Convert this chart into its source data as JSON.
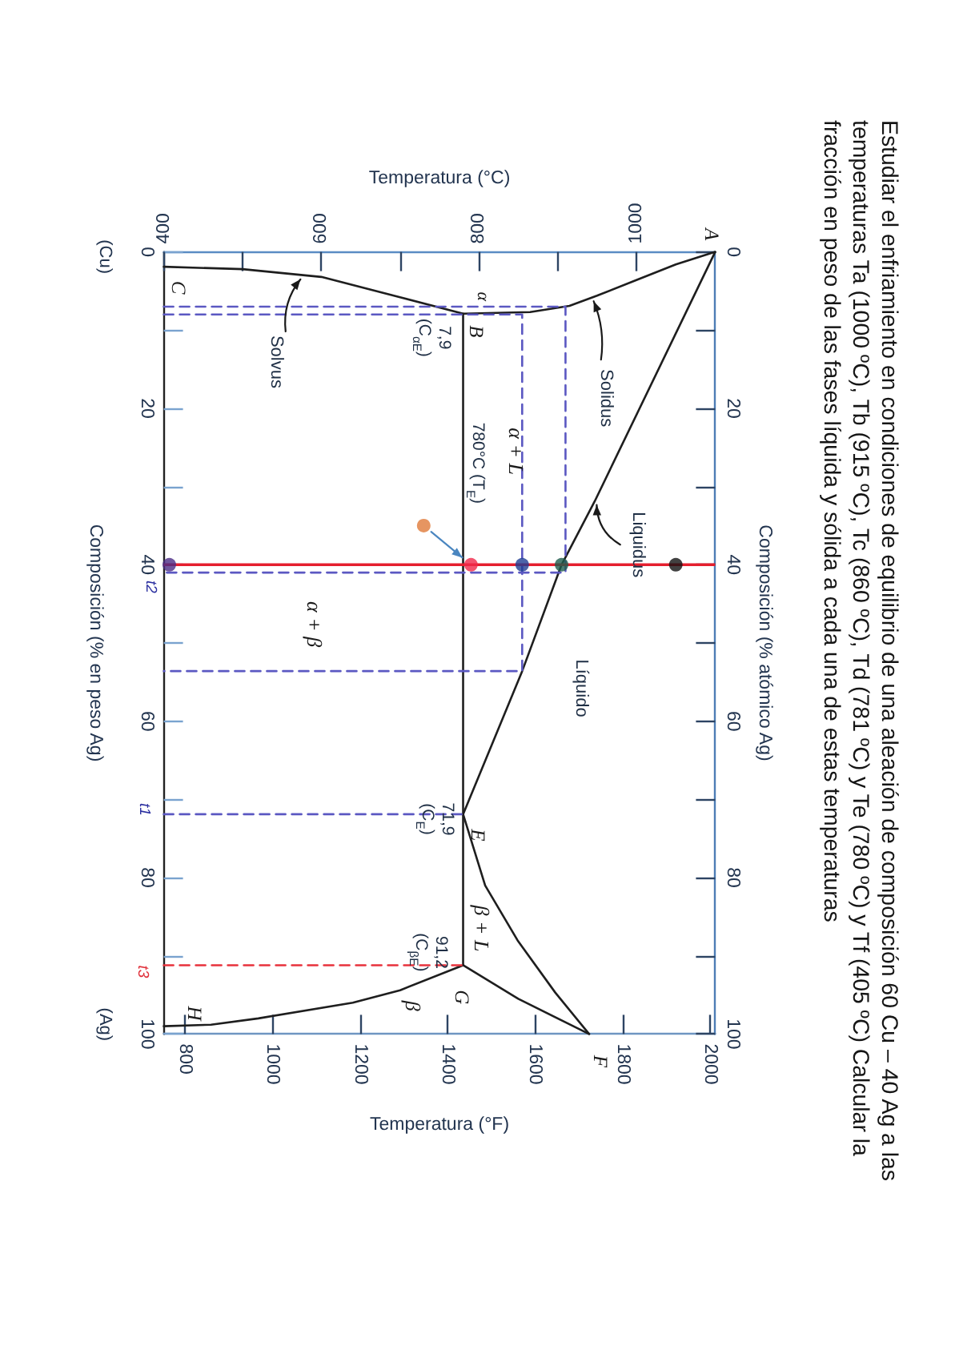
{
  "chart_data": {
    "type": "line",
    "title": "Estudiar el enfriamiento en condiciones de equilibrio de una aleación de composición 60 Cu – 40 Ag a las temperaturas Ta (1000 ºC), Tb (915 ºC), Tc (860 ºC), Td (781 ºC) y Te (780 ºC) y Tf (405 ºC) Calcular la fracción en peso de las fases líquida y sólida a cada una de estas temperaturas",
    "xlabel": "Temperatura (°C)",
    "x2label": "Temperatura (°F)",
    "ylabel": "Composición (% en peso Ag)",
    "y2label": "Composición (% atómico Ag)",
    "xlim": [
      400,
      1100
    ],
    "xticks": [
      400,
      {
        "value": 500,
        "label": null
      },
      600,
      {
        "value": 700,
        "label": null
      },
      800,
      {
        "value": 900,
        "label": null
      },
      1000
    ],
    "x2lim": [
      752,
      2012
    ],
    "x2ticks": [
      800,
      1000,
      1200,
      1400,
      1600,
      1800,
      2000
    ],
    "ylim": [
      100,
      0
    ],
    "yticks": [
      0,
      {
        "value": 10,
        "label": null
      },
      20,
      {
        "value": 30,
        "label": null
      },
      40,
      {
        "value": 50,
        "label": null
      },
      60,
      {
        "value": 70,
        "label": null
      },
      80,
      {
        "value": 90,
        "label": null
      },
      100
    ],
    "y2lim": [
      100,
      0
    ],
    "y2ticks": [
      0,
      {
        "value": 10,
        "label": null
      },
      20,
      {
        "value": 30,
        "label": null
      },
      40,
      {
        "value": 50,
        "label": null
      },
      60,
      {
        "value": 70,
        "label": null
      },
      80,
      {
        "value": 90,
        "label": null
      },
      100
    ],
    "grid": false,
    "marker": "none",
    "series": [
      {
        "color": "#1e1e1e",
        "x": [
          1100,
          947,
          905,
          855,
          780
        ],
        "values": [
          0,
          31.9,
          40,
          53.6,
          71.9
        ]
      },
      {
        "color": "#1e1e1e",
        "x": [
          1100,
          1050,
          1000,
          950,
          915,
          865,
          780,
          700,
          600,
          500,
          400
        ],
        "values": [
          0,
          1.6,
          3.6,
          5.6,
          6.9,
          7.7,
          7.9,
          5.8,
          3.2,
          2.2,
          1.9
        ]
      },
      {
        "color": "#1e1e1e",
        "x": [
          780,
          780
        ],
        "values": [
          7.9,
          91.2
        ]
      },
      {
        "color": "#1e1e1e",
        "x": [
          780,
          808,
          849,
          897,
          940
        ],
        "values": [
          71.9,
          81,
          88,
          94.7,
          100
        ]
      },
      {
        "color": "#1e1e1e",
        "x": [
          780,
          850,
          940
        ],
        "values": [
          91.2,
          95.5,
          100
        ]
      },
      {
        "color": "#1e1e1e",
        "x": [
          780,
          700,
          640,
          520,
          460,
          400
        ],
        "values": [
          91.2,
          94.4,
          96,
          98,
          98.8,
          99
        ]
      },
      {
        "color": "#5b58c2",
        "line_style": "dashed",
        "x": [
          400,
          910,
          910,
          400,
          null,
          400,
          855,
          855,
          400
        ],
        "values": [
          7,
          7,
          41,
          41,
          null,
          8,
          8,
          53.6,
          53.6
        ]
      },
      {
        "color": "#5b58c2",
        "line_style": "dashed",
        "x": [
          400,
          780
        ],
        "values": [
          71.9,
          71.9
        ]
      },
      {
        "color": "#e8323c",
        "line_style": "dashed",
        "x": [
          400,
          780
        ],
        "values": [
          91.2,
          91.2
        ]
      },
      {
        "type": "scatter",
        "marker": "circle",
        "x": [
          1050,
          905,
          855,
          790,
          730,
          407
        ],
        "values": [
          40,
          40,
          40,
          40,
          35,
          40
        ],
        "colors": [
          "#111111",
          "#1e5b4c",
          "#1f3d94",
          "#f0284a",
          "#e07b39",
          "#4b2c86"
        ]
      }
    ],
    "ref_lines": [
      {
        "axis": "y",
        "value": 40,
        "color": "#e51f2e"
      }
    ],
    "annotations": [
      {
        "text": "A",
        "x": 1100,
        "y": 0
      },
      {
        "text": "B",
        "x": 780,
        "y": 7.9
      },
      {
        "text": "C",
        "x": 400,
        "y": 1.9
      },
      {
        "text": "E",
        "x": 780,
        "y": 71.9
      },
      {
        "text": "F",
        "x": 940,
        "y": 100
      },
      {
        "text": "G",
        "x": 780,
        "y": 91.2
      },
      {
        "text": "H",
        "x": 400,
        "y": 99
      },
      "α",
      "α + L",
      "Líquido",
      "α + β",
      "β + L",
      "β",
      {
        "text": "780°C (T$_{E}$)",
        "x": 780,
        "y": 27
      },
      {
        "text": "7,9\n(C$_{αE}$)",
        "x": 780,
        "y": 7.9
      },
      {
        "text": "71,9\n(C$_{E}$)",
        "x": 780,
        "y": 71.9
      },
      {
        "text": "91,2\n(C$_{βE}$)",
        "x": 780,
        "y": 91.2
      },
      {
        "text": "Solvus",
        "x": 575,
        "y": 3
      },
      {
        "text": "Solidus",
        "x": 945,
        "y": 5.8
      },
      {
        "text": "Liquidus",
        "x": 947,
        "y": 31.9
      },
      "(Cu)",
      "(Ag)",
      {
        "text": "t2",
        "x": 400,
        "y": 41
      },
      {
        "text": "t1",
        "x": 400,
        "y": 71.9
      },
      {
        "text": "t3",
        "x": 400,
        "y": 91.2
      }
    ]
  }
}
